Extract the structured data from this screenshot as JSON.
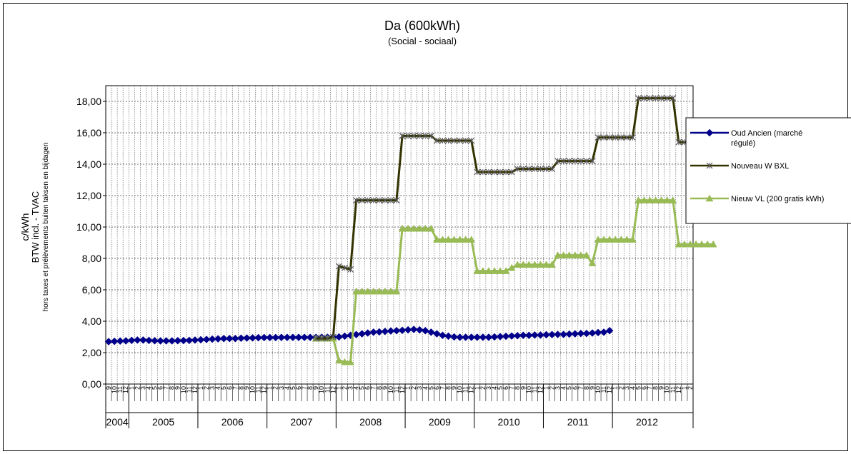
{
  "chart_data": {
    "type": "line",
    "title": "Da (600kWh)",
    "subtitle": "(Social - sociaal)",
    "ylabel_lines": [
      "c/kWh",
      "BTW incl. - TVAC",
      "hors taxes et prélèvements   buiten taksen en bijdagen"
    ],
    "ylim": [
      0,
      19
    ],
    "yticks": [
      "0,00",
      "2,00",
      "4,00",
      "6,00",
      "8,00",
      "10,00",
      "12,00",
      "14,00",
      "16,00",
      "18,00"
    ],
    "grid": true,
    "legend_position": "right",
    "x_months": [
      "9",
      "10",
      "11",
      "12",
      "1",
      "2",
      "3",
      "4",
      "5",
      "6",
      "7",
      "8",
      "9",
      "10",
      "11",
      "12",
      "1",
      "2",
      "3",
      "4",
      "5",
      "6",
      "7",
      "8",
      "9",
      "10",
      "11",
      "12",
      "1",
      "2",
      "3",
      "4",
      "5",
      "6",
      "7",
      "8",
      "9",
      "10",
      "11",
      "12",
      "1",
      "2",
      "3",
      "4",
      "5",
      "6",
      "7",
      "8",
      "9",
      "10",
      "11",
      "12",
      "1",
      "2",
      "3",
      "4",
      "5",
      "6",
      "7",
      "8",
      "9",
      "10",
      "11",
      "12",
      "1",
      "2",
      "3",
      "4",
      "5",
      "6",
      "7",
      "8",
      "9",
      "10",
      "11",
      "12",
      "1",
      "2",
      "3",
      "4",
      "5",
      "6",
      "7",
      "8",
      "9",
      "10",
      "11",
      "12",
      "1",
      "2",
      "3",
      "4",
      "5",
      "6",
      "7",
      "8",
      "9",
      "10",
      "11",
      "12",
      "1",
      "2"
    ],
    "years": [
      {
        "label": "2004",
        "start": 0,
        "span": 4
      },
      {
        "label": "2005",
        "start": 4,
        "span": 12
      },
      {
        "label": "2006",
        "start": 16,
        "span": 12
      },
      {
        "label": "2007",
        "start": 28,
        "span": 12
      },
      {
        "label": "2008",
        "start": 40,
        "span": 12
      },
      {
        "label": "2009",
        "start": 52,
        "span": 12
      },
      {
        "label": "2010",
        "start": 64,
        "span": 12
      },
      {
        "label": "2011",
        "start": 76,
        "span": 12
      },
      {
        "label": "2012",
        "start": 88,
        "span": 12
      }
    ],
    "series": [
      {
        "name": "Oud  Ancien (marché régulé)",
        "color": "#00008b",
        "marker": "diamond",
        "start_index": 0,
        "values": [
          2.7,
          2.72,
          2.74,
          2.75,
          2.78,
          2.8,
          2.8,
          2.78,
          2.76,
          2.75,
          2.75,
          2.75,
          2.76,
          2.77,
          2.78,
          2.8,
          2.82,
          2.84,
          2.86,
          2.88,
          2.9,
          2.9,
          2.9,
          2.92,
          2.93,
          2.94,
          2.95,
          2.96,
          2.96,
          2.96,
          2.97,
          2.97,
          2.97,
          2.97,
          2.97,
          2.97,
          2.97,
          2.98,
          2.98,
          2.99,
          3.0,
          3.05,
          3.1,
          3.15,
          3.2,
          3.25,
          3.3,
          3.32,
          3.35,
          3.38,
          3.4,
          3.42,
          3.45,
          3.48,
          3.45,
          3.4,
          3.3,
          3.2,
          3.1,
          3.05,
          3.0,
          2.98,
          2.98,
          2.98,
          2.98,
          2.98,
          2.98,
          3.0,
          3.02,
          3.04,
          3.06,
          3.08,
          3.1,
          3.1,
          3.12,
          3.12,
          3.14,
          3.15,
          3.16,
          3.16,
          3.18,
          3.2,
          3.22,
          3.22,
          3.25,
          3.28,
          3.3,
          3.4
        ]
      },
      {
        "name": "Nouveau  W BXL",
        "color": "#333300",
        "marker": "x",
        "start_index": 36,
        "values": [
          2.9,
          2.9,
          2.9,
          3.0,
          7.5,
          7.4,
          7.3,
          11.7,
          11.7,
          11.7,
          11.7,
          11.7,
          11.7,
          11.7,
          11.7,
          15.8,
          15.8,
          15.8,
          15.8,
          15.8,
          15.8,
          15.5,
          15.5,
          15.5,
          15.5,
          15.5,
          15.5,
          15.5,
          13.5,
          13.5,
          13.5,
          13.5,
          13.5,
          13.5,
          13.5,
          13.7,
          13.7,
          13.7,
          13.7,
          13.7,
          13.7,
          13.7,
          14.2,
          14.2,
          14.2,
          14.2,
          14.2,
          14.2,
          14.2,
          15.7,
          15.7,
          15.7,
          15.7,
          15.7,
          15.7,
          15.7,
          18.2,
          18.2,
          18.2,
          18.2,
          18.2,
          18.2,
          18.2,
          15.4,
          15.4,
          15.4,
          15.4,
          15.4,
          15.4,
          15.4
        ]
      },
      {
        "name": "Nieuw VL  (200 gratis kWh)",
        "color": "#99bb55",
        "marker": "triangle",
        "start_index": 36,
        "values": [
          2.9,
          2.9,
          2.9,
          2.9,
          1.5,
          1.4,
          1.4,
          5.9,
          5.9,
          5.9,
          5.9,
          5.9,
          5.9,
          5.9,
          5.9,
          9.9,
          9.9,
          9.9,
          9.9,
          9.9,
          9.9,
          9.2,
          9.2,
          9.2,
          9.2,
          9.2,
          9.2,
          9.2,
          7.2,
          7.2,
          7.2,
          7.2,
          7.2,
          7.2,
          7.4,
          7.6,
          7.6,
          7.6,
          7.6,
          7.6,
          7.6,
          7.6,
          8.2,
          8.2,
          8.2,
          8.2,
          8.2,
          8.2,
          7.7,
          9.2,
          9.2,
          9.2,
          9.2,
          9.2,
          9.2,
          9.2,
          11.7,
          11.7,
          11.7,
          11.7,
          11.7,
          11.7,
          11.7,
          8.9,
          8.9,
          8.9,
          8.9,
          8.9,
          8.9,
          8.9
        ]
      }
    ]
  },
  "legend": {
    "items": [
      {
        "label_lines": [
          "Oud  Ancien (marché",
          "régulé)"
        ],
        "color": "#00008b",
        "marker": "diamond"
      },
      {
        "label_lines": [
          "Nouveau  W BXL"
        ],
        "color": "#333300",
        "marker": "x"
      },
      {
        "label_lines": [
          "Nieuw VL  (200 gratis kWh)"
        ],
        "color": "#99bb55",
        "marker": "triangle"
      }
    ]
  }
}
